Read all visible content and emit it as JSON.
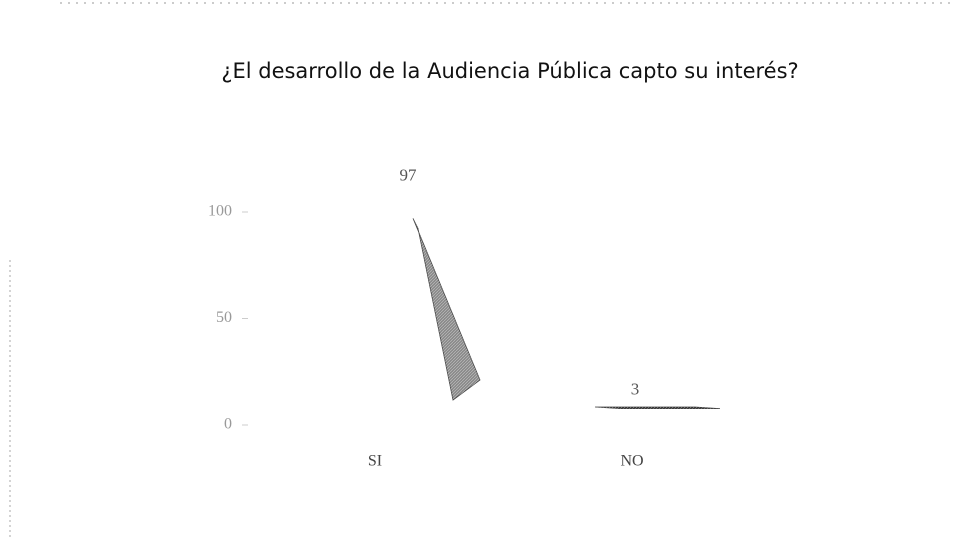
{
  "chart_data": {
    "type": "bar",
    "title": "¿El desarrollo de la Audiencia Pública capto su interés?",
    "categories": [
      "SI",
      "NO"
    ],
    "values": [
      97,
      3
    ],
    "colors": [
      "#8a8a8a",
      "#2e2e2e"
    ],
    "ylim": [
      0,
      100
    ],
    "yticks": [
      0,
      50,
      100
    ]
  }
}
